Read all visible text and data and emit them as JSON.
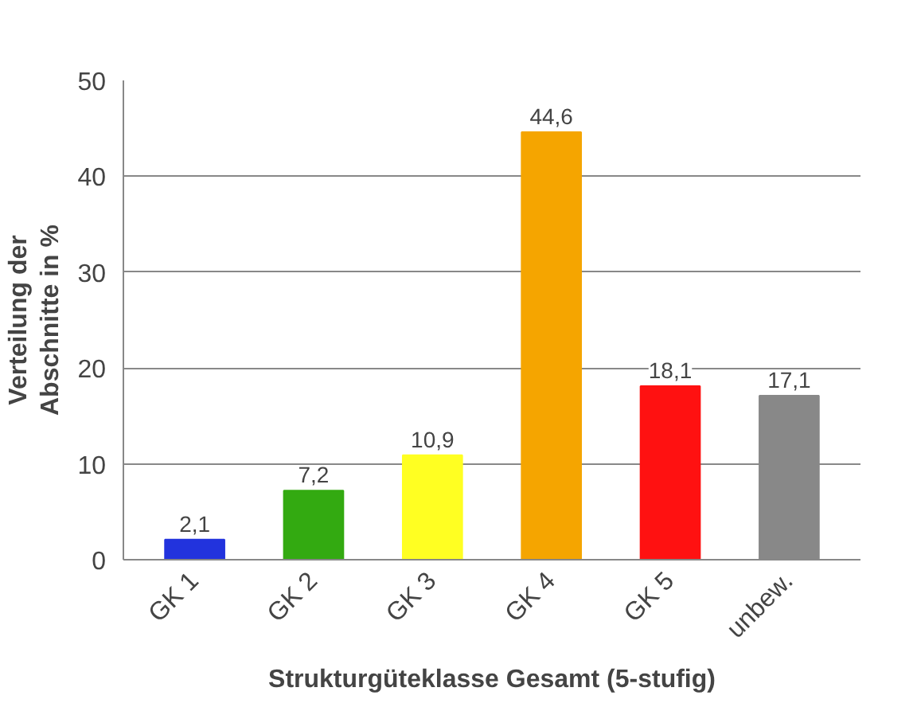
{
  "chart_data": {
    "type": "bar",
    "xlabel": "Strukturgüteklasse Gesamt (5-stufig)",
    "ylabel": "Verteilung der\nAbschnitte in %",
    "categories": [
      "GK 1",
      "GK 2",
      "GK 3",
      "GK 4",
      "GK 5",
      "unbew."
    ],
    "values": [
      2.1,
      7.2,
      10.9,
      44.6,
      18.1,
      17.1
    ],
    "value_labels": [
      "2,1",
      "7,2",
      "10,9",
      "44,6",
      "18,1",
      "17,1"
    ],
    "colors": [
      "#2233dd",
      "#33aa11",
      "#ffff22",
      "#f5a500",
      "#ff1111",
      "#888888"
    ],
    "ylim": [
      0,
      50
    ],
    "yticks": [
      0,
      10,
      20,
      30,
      40,
      50
    ],
    "grid": "y"
  }
}
